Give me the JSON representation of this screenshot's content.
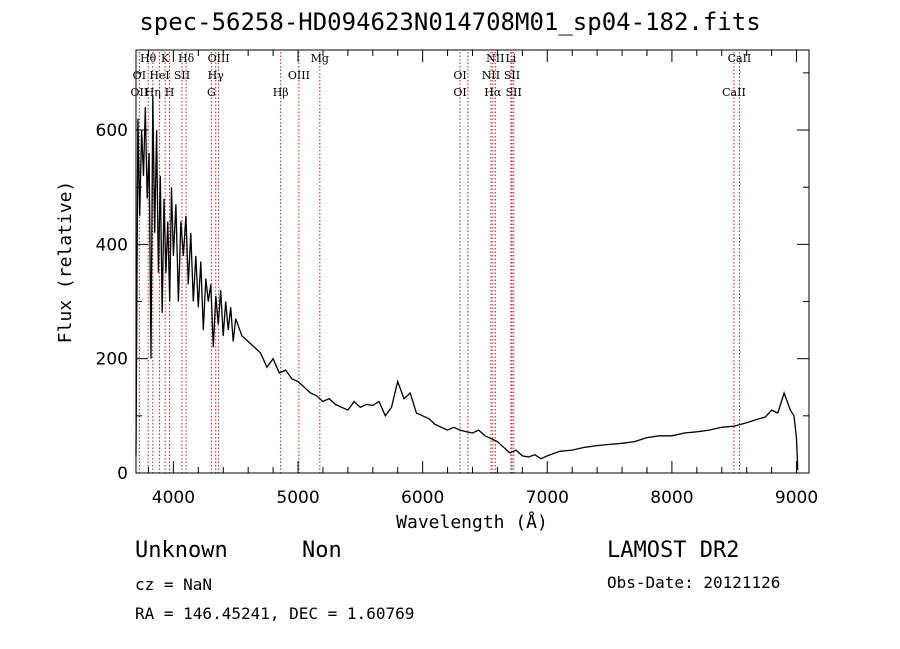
{
  "title": "spec-56258-HD094623N014708M01_sp04-182.fits",
  "info": {
    "class_label": "Unknown",
    "subclass_label": "Non",
    "cz": "cz = NaN",
    "radec": "RA = 146.45241, DEC =    1.60769",
    "survey": "LAMOST DR2",
    "obs_date": "Obs-Date: 20121126"
  },
  "colors": {
    "spectrum": "#000000",
    "line_markers": "#b22222",
    "axes": "#000000"
  },
  "chart_data": {
    "type": "line",
    "title": "spec-56258-HD094623N014708M01_sp04-182.fits",
    "xlabel": "Wavelength (Å)",
    "ylabel": "Flux (relative)",
    "xlim": [
      3700,
      9100
    ],
    "ylim": [
      0,
      740
    ],
    "x_ticks": [
      4000,
      5000,
      6000,
      7000,
      8000,
      9000
    ],
    "y_ticks": [
      0,
      200,
      400,
      600
    ],
    "grid": false,
    "series": [
      {
        "x": [
          3700,
          3715,
          3730,
          3745,
          3760,
          3775,
          3790,
          3805,
          3820,
          3835,
          3850,
          3865,
          3880,
          3895,
          3910,
          3925,
          3940,
          3955,
          3970,
          3985,
          4000,
          4020,
          4040,
          4060,
          4080,
          4100,
          4120,
          4140,
          4160,
          4180,
          4200,
          4220,
          4240,
          4260,
          4280,
          4300,
          4320,
          4340,
          4360,
          4380,
          4400,
          4420,
          4440,
          4460,
          4480,
          4500,
          4550,
          4600,
          4650,
          4700,
          4750,
          4800,
          4850,
          4900,
          4950,
          5000,
          5050,
          5100,
          5150,
          5200,
          5250,
          5300,
          5350,
          5400,
          5450,
          5500,
          5550,
          5600,
          5650,
          5700,
          5750,
          5800,
          5850,
          5900,
          5950,
          6000,
          6050,
          6100,
          6150,
          6200,
          6250,
          6300,
          6350,
          6400,
          6450,
          6500,
          6550,
          6600,
          6650,
          6700,
          6750,
          6800,
          6850,
          6900,
          6950,
          7000,
          7100,
          7200,
          7300,
          7400,
          7500,
          7600,
          7700,
          7800,
          7900,
          8000,
          8100,
          8200,
          8300,
          8400,
          8500,
          8600,
          8700,
          8750,
          8800,
          8850,
          8900,
          8950,
          8980,
          9000,
          9010
        ],
        "y": [
          30,
          620,
          450,
          600,
          520,
          640,
          480,
          560,
          200,
          660,
          420,
          600,
          350,
          520,
          280,
          480,
          350,
          440,
          300,
          500,
          380,
          470,
          300,
          440,
          380,
          450,
          330,
          420,
          300,
          380,
          290,
          370,
          250,
          340,
          300,
          330,
          220,
          310,
          260,
          320,
          240,
          300,
          250,
          290,
          230,
          270,
          240,
          230,
          220,
          210,
          185,
          200,
          175,
          180,
          165,
          160,
          150,
          140,
          135,
          125,
          130,
          120,
          115,
          110,
          125,
          115,
          120,
          118,
          125,
          100,
          115,
          160,
          130,
          140,
          105,
          100,
          95,
          85,
          80,
          75,
          80,
          75,
          72,
          70,
          75,
          65,
          60,
          55,
          45,
          35,
          40,
          30,
          28,
          32,
          25,
          30,
          38,
          40,
          45,
          48,
          50,
          52,
          55,
          62,
          65,
          65,
          70,
          72,
          75,
          80,
          82,
          88,
          95,
          98,
          110,
          105,
          140,
          110,
          100,
          60,
          5
        ]
      }
    ],
    "line_labels": [
      {
        "label": "Hθ",
        "wavelength": 3798,
        "row": 1
      },
      {
        "label": "K",
        "wavelength": 3934,
        "row": 1
      },
      {
        "label": "Hδ",
        "wavelength": 4102,
        "row": 1
      },
      {
        "label": "OIII",
        "wavelength": 4363,
        "row": 1
      },
      {
        "label": "Mg",
        "wavelength": 5175,
        "row": 1
      },
      {
        "label": "NII",
        "wavelength": 6583,
        "row": 1
      },
      {
        "label": "Li",
        "wavelength": 6708,
        "row": 1
      },
      {
        "label": "CaII",
        "wavelength": 8542,
        "row": 1
      },
      {
        "label": "OI",
        "wavelength": 3727,
        "row": 2
      },
      {
        "label": "HeI",
        "wavelength": 3889,
        "row": 2
      },
      {
        "label": "SII",
        "wavelength": 4069,
        "row": 2
      },
      {
        "label": "Hγ",
        "wavelength": 4340,
        "row": 2
      },
      {
        "label": "OIII",
        "wavelength": 5007,
        "row": 2
      },
      {
        "label": "OI",
        "wavelength": 6300,
        "row": 2
      },
      {
        "label": "NII",
        "wavelength": 6548,
        "row": 2
      },
      {
        "label": "SII",
        "wavelength": 6717,
        "row": 2
      },
      {
        "label": "OII",
        "wavelength": 3727,
        "row": 3
      },
      {
        "label": "Hη",
        "wavelength": 3835,
        "row": 3
      },
      {
        "label": "H",
        "wavelength": 3969,
        "row": 3
      },
      {
        "label": "G",
        "wavelength": 4305,
        "row": 3
      },
      {
        "label": "Hβ",
        "wavelength": 4861,
        "row": 3
      },
      {
        "label": "OI",
        "wavelength": 6300,
        "row": 3
      },
      {
        "label": "Hα",
        "wavelength": 6563,
        "row": 3
      },
      {
        "label": "SII",
        "wavelength": 6731,
        "row": 3
      },
      {
        "label": "CaII",
        "wavelength": 8498,
        "row": 3
      }
    ],
    "marker_lines": [
      3727,
      3798,
      3835,
      3889,
      3934,
      3969,
      4069,
      4102,
      4305,
      4340,
      4363,
      4861,
      5007,
      5175,
      6300,
      6363,
      6548,
      6563,
      6583,
      6708,
      6717,
      6731,
      8498,
      8542
    ]
  }
}
